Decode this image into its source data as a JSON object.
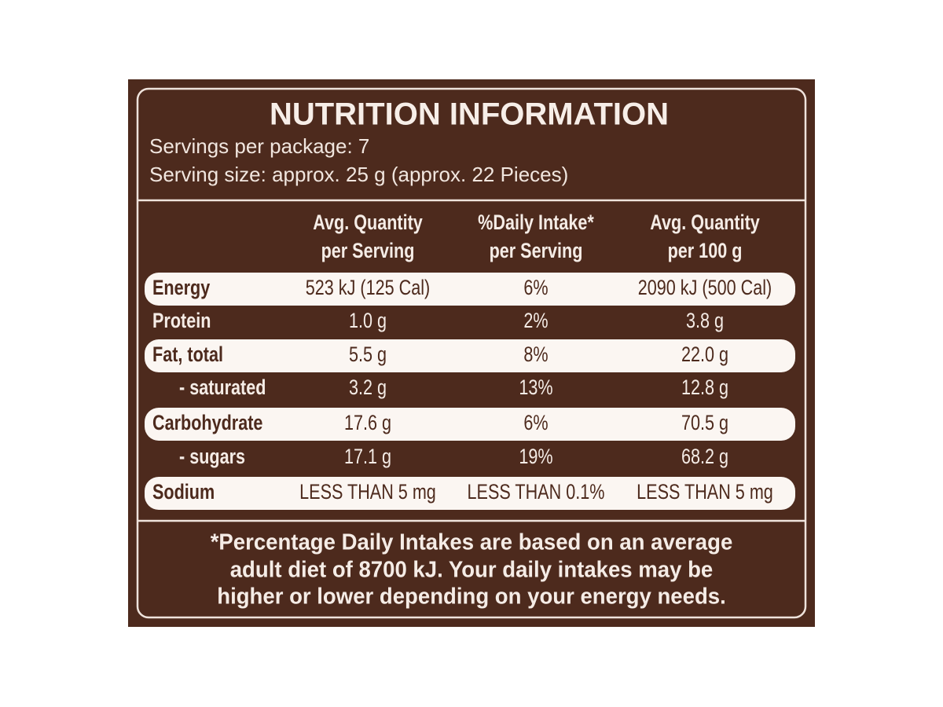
{
  "title": "NUTRITION INFORMATION",
  "servings_per_package": "Servings per package: 7",
  "serving_size": "Serving size: approx. 25 g (approx. 22 Pieces)",
  "table": {
    "headers": [
      [
        "Avg. Quantity",
        "per Serving"
      ],
      [
        "%Daily Intake*",
        "per Serving"
      ],
      [
        "Avg. Quantity",
        "per 100 g"
      ]
    ],
    "rows": [
      [
        "Energy",
        "523 kJ (125 Cal)",
        "6%",
        "2090 kJ (500 Cal)"
      ],
      [
        "Protein",
        "1.0 g",
        "2%",
        "3.8 g"
      ],
      [
        "Fat, total",
        "5.5 g",
        "8%",
        "22.0 g"
      ],
      [
        "- saturated",
        "3.2 g",
        "13%",
        "12.8 g"
      ],
      [
        "Carbohydrate",
        "17.6 g",
        "6%",
        "70.5 g"
      ],
      [
        "- sugars",
        "17.1 g",
        "19%",
        "68.2 g"
      ],
      [
        "Sodium",
        "LESS THAN 5 mg",
        "LESS THAN 0.1%",
        "LESS THAN 5 mg"
      ]
    ]
  },
  "footnote": [
    "*Percentage Daily Intakes are based on an average",
    "adult diet of 8700 kJ. Your daily intakes may be",
    "higher or lower depending on your energy needs."
  ]
}
